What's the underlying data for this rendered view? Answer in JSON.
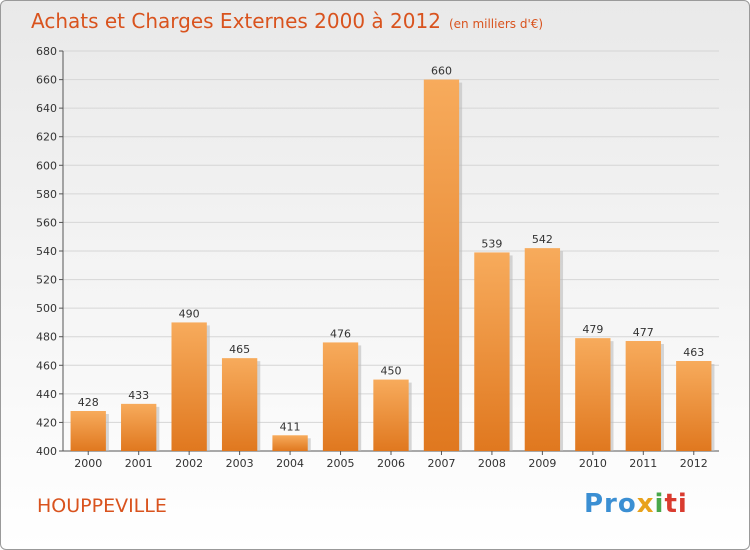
{
  "header": {
    "title": "Achats et Charges Externes 2000 à 2012",
    "subtitle": "(en milliers d'€)"
  },
  "commune": "HOUPPEVILLE",
  "logo": {
    "p1": "Pro",
    "p2": "x",
    "p3": "i",
    "p4": "ti"
  },
  "colors": {
    "bar_top": "#f6a95a",
    "bar_bottom": "#e27a22",
    "title": "#d9531e",
    "grid": "#d8d8d8"
  },
  "chart_data": {
    "type": "bar",
    "categories": [
      "2000",
      "2001",
      "2002",
      "2003",
      "2004",
      "2005",
      "2006",
      "2007",
      "2008",
      "2009",
      "2010",
      "2011",
      "2012"
    ],
    "values": [
      428,
      433,
      490,
      465,
      411,
      476,
      450,
      660,
      539,
      542,
      479,
      477,
      463
    ],
    "ylim": [
      400,
      680
    ],
    "yticks": [
      400,
      420,
      440,
      460,
      480,
      500,
      520,
      540,
      560,
      580,
      600,
      620,
      640,
      660,
      680
    ],
    "grid": true,
    "title": "Achats et Charges Externes 2000 à 2012",
    "xlabel": "",
    "ylabel": ""
  }
}
